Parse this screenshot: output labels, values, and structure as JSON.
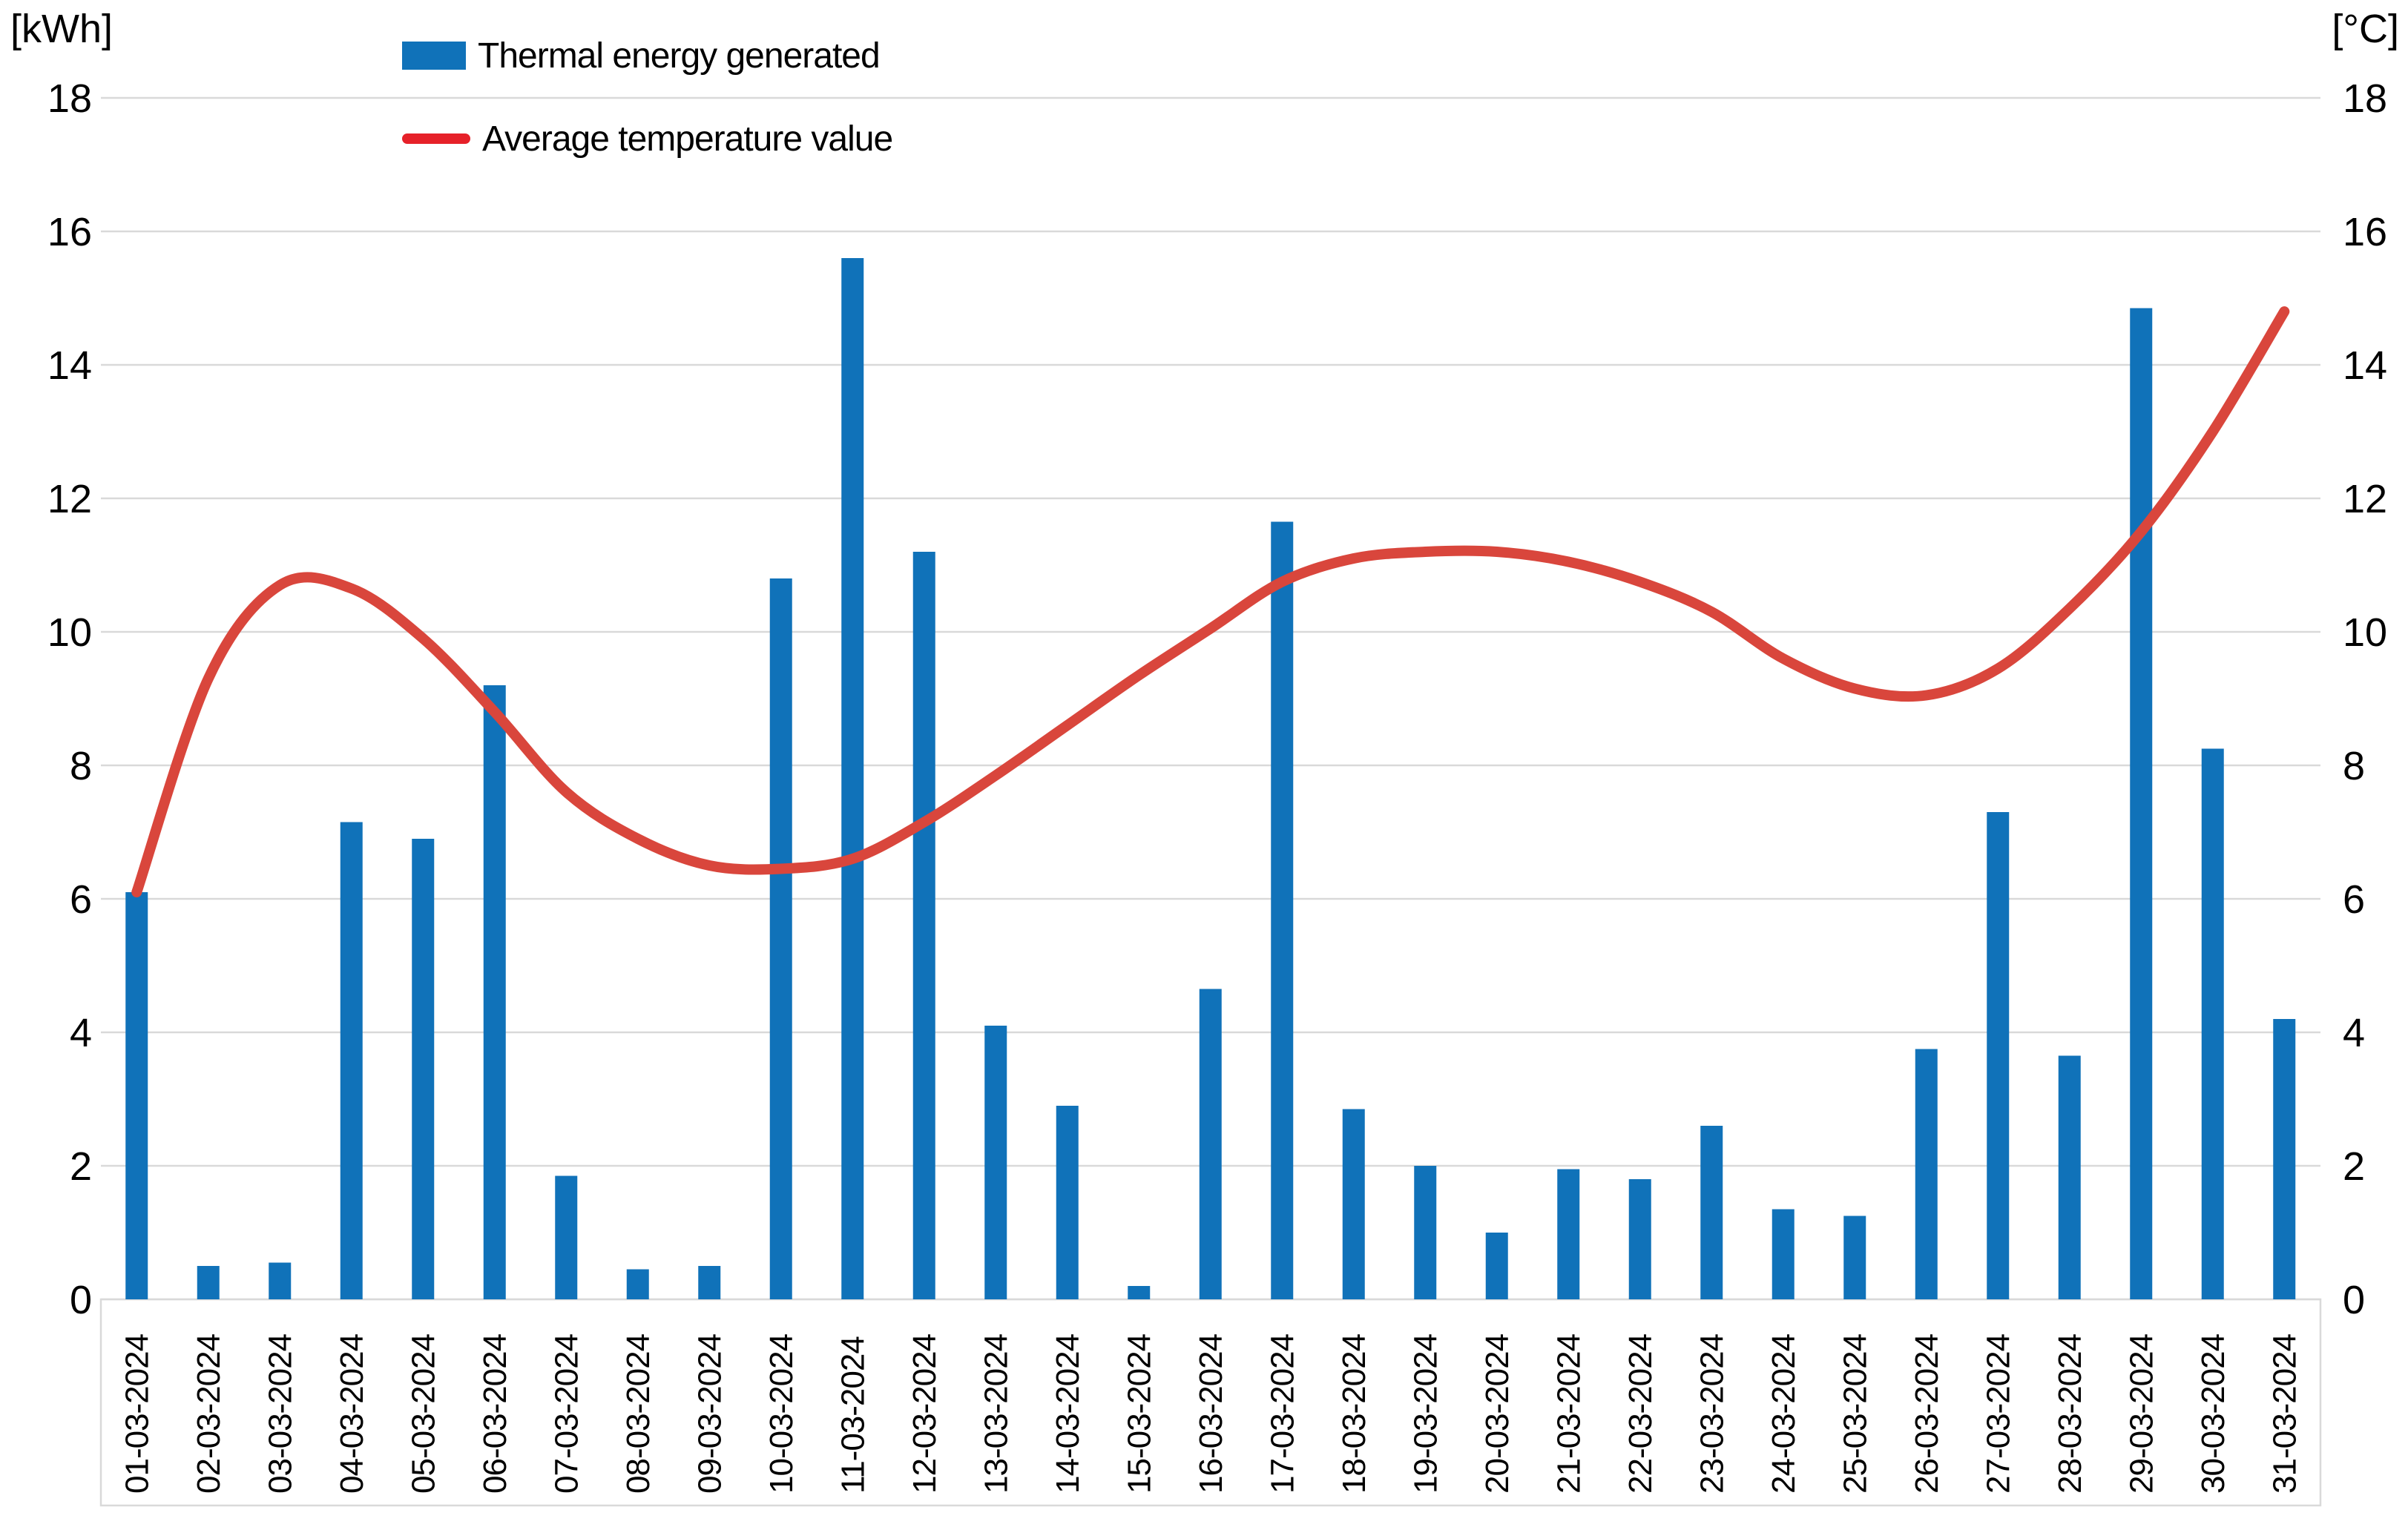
{
  "chart_data": {
    "type": "bar",
    "subtype": "combo-bar-line",
    "categories": [
      "01-03-2024",
      "02-03-2024",
      "03-03-2024",
      "04-03-2024",
      "05-03-2024",
      "06-03-2024",
      "07-03-2024",
      "08-03-2024",
      "09-03-2024",
      "10-03-2024",
      "11-03-2024",
      "12-03-2024",
      "13-03-2024",
      "14-03-2024",
      "15-03-2024",
      "16-03-2024",
      "17-03-2024",
      "18-03-2024",
      "19-03-2024",
      "20-03-2024",
      "21-03-2024",
      "22-03-2024",
      "23-03-2024",
      "24-03-2024",
      "25-03-2024",
      "26-03-2024",
      "27-03-2024",
      "28-03-2024",
      "29-03-2024",
      "30-03-2024",
      "31-03-2024"
    ],
    "series": [
      {
        "name": "Thermal energy generated",
        "type": "bar",
        "axis": "left",
        "unit": "kWh",
        "color": "#1072b9",
        "values": [
          6.1,
          0.5,
          0.55,
          7.15,
          6.9,
          9.2,
          1.85,
          0.45,
          0.5,
          10.8,
          15.6,
          11.2,
          4.1,
          2.9,
          0.2,
          4.65,
          11.65,
          2.85,
          2.0,
          1.0,
          1.95,
          1.8,
          2.6,
          1.35,
          1.25,
          3.75,
          7.3,
          3.65,
          14.85,
          8.25,
          4.2
        ]
      },
      {
        "name": "Average temperature value",
        "type": "line",
        "axis": "right",
        "unit": "°C",
        "color": "#d9463c",
        "legend_color": "#e62129",
        "values": [
          6.1,
          9.3,
          10.7,
          10.65,
          9.9,
          8.8,
          7.6,
          6.9,
          6.5,
          6.45,
          6.6,
          7.15,
          7.85,
          8.6,
          9.35,
          10.05,
          10.75,
          11.1,
          11.2,
          11.2,
          11.05,
          10.75,
          10.3,
          9.6,
          9.15,
          9.05,
          9.45,
          10.35,
          11.5,
          13.0,
          14.8
        ]
      }
    ],
    "left_axis": {
      "label": "[kWh]",
      "min": 0,
      "max": 18,
      "step": 2,
      "ticks": [
        "0",
        "2",
        "4",
        "6",
        "8",
        "10",
        "12",
        "14",
        "16",
        "18"
      ]
    },
    "right_axis": {
      "label": "[°C]",
      "min": 0,
      "max": 18,
      "step": 2,
      "ticks": [
        "0",
        "2",
        "4",
        "6",
        "8",
        "10",
        "12",
        "14",
        "16",
        "18"
      ]
    },
    "grid": true,
    "gridline_color": "#d9d9d9",
    "background": "#ffffff",
    "legend_position": "top-left-inset",
    "x_tick_rotation_degrees": -90
  }
}
